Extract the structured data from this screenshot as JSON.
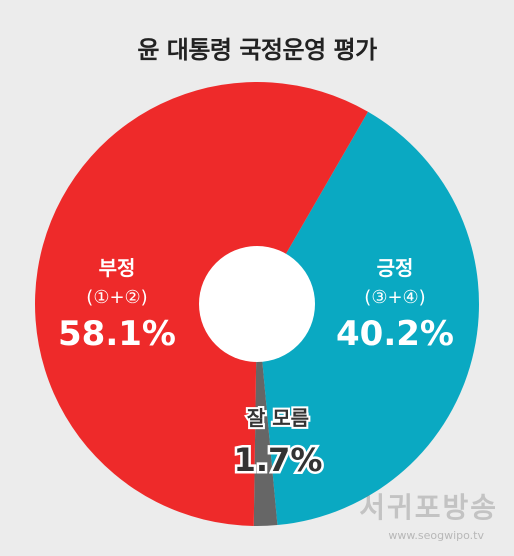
{
  "chart_data": {
    "type": "pie",
    "title": "윤 대통령 국정운영 평가",
    "slices": [
      {
        "label": "긍정",
        "sublabel": "(③+④)",
        "value": 40.2,
        "display": "40.2%",
        "color": "#0aa9c2"
      },
      {
        "label": "잘 모름",
        "sublabel": "",
        "value": 1.7,
        "display": "1.7%",
        "color": "#666666"
      },
      {
        "label": "부정",
        "sublabel": "(①+②)",
        "value": 58.1,
        "display": "58.1%",
        "color": "#ee2a2a"
      }
    ],
    "start_angle_deg": 30,
    "direction": "clockwise",
    "legend": "none"
  },
  "watermark": {
    "name": "서귀포방송",
    "url": "www.seogwipo.tv"
  }
}
